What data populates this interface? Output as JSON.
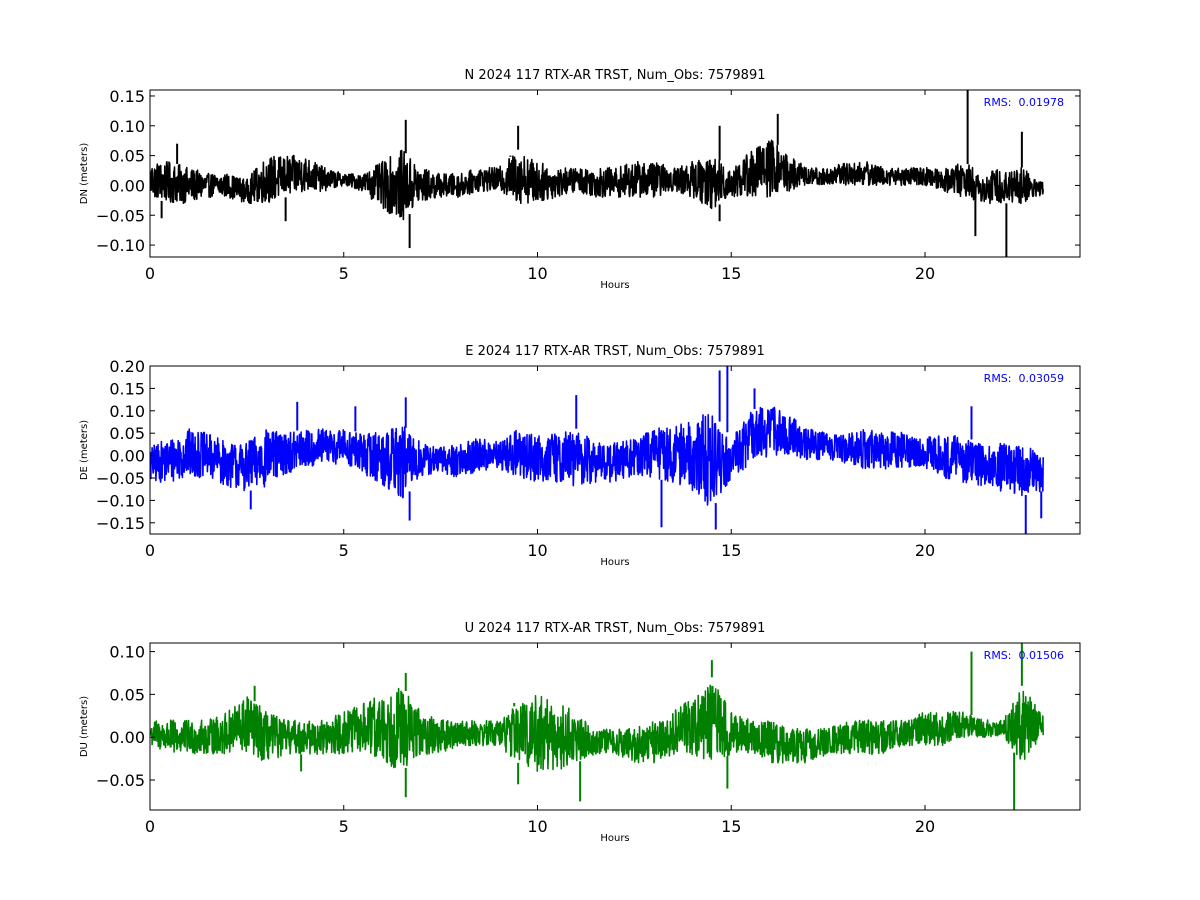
{
  "chart_data": [
    {
      "type": "line",
      "title": "N 2024 117 RTX-AR  TRST, Num_Obs: 7579891",
      "xlabel": "Hours",
      "ylabel": "DN (meters)",
      "xlim": [
        0,
        24
      ],
      "ylim": [
        -0.12,
        0.16
      ],
      "xticks": [
        0,
        5,
        10,
        15,
        20
      ],
      "yticks": [
        -0.1,
        -0.05,
        0.0,
        0.05,
        0.1,
        0.15
      ],
      "ytick_labels": [
        "−0.10",
        "−0.05",
        "0.00",
        "0.05",
        "0.10",
        "0.15"
      ],
      "color": "#000000",
      "annotation": {
        "label": "RMS:",
        "value": "0.01978",
        "color": "#0000ff"
      },
      "envelope": {
        "x": [
          0.0,
          0.5,
          1.0,
          1.5,
          2.0,
          2.5,
          3.0,
          3.5,
          4.0,
          4.5,
          5.0,
          5.5,
          6.0,
          6.5,
          7.0,
          7.5,
          8.0,
          8.5,
          9.0,
          9.5,
          10.0,
          10.5,
          11.0,
          11.5,
          12.0,
          12.5,
          13.0,
          13.5,
          14.0,
          14.5,
          15.0,
          15.5,
          16.0,
          16.5,
          17.0,
          17.5,
          18.0,
          18.5,
          19.0,
          19.5,
          20.0,
          20.5,
          21.0,
          21.5,
          22.0,
          22.5,
          23.0
        ],
        "upper": [
          0.04,
          0.04,
          0.03,
          0.02,
          0.02,
          0.01,
          0.05,
          0.05,
          0.05,
          0.03,
          0.02,
          0.02,
          0.04,
          0.06,
          0.03,
          0.02,
          0.02,
          0.03,
          0.03,
          0.06,
          0.04,
          0.03,
          0.03,
          0.03,
          0.03,
          0.04,
          0.04,
          0.03,
          0.04,
          0.05,
          0.03,
          0.06,
          0.08,
          0.05,
          0.03,
          0.03,
          0.04,
          0.04,
          0.03,
          0.03,
          0.03,
          0.03,
          0.04,
          0.02,
          0.03,
          0.03,
          0.01
        ],
        "lower": [
          -0.02,
          -0.03,
          -0.03,
          -0.02,
          -0.02,
          -0.03,
          -0.03,
          -0.02,
          -0.01,
          -0.01,
          0.0,
          -0.01,
          -0.04,
          -0.06,
          -0.03,
          -0.02,
          -0.02,
          -0.01,
          -0.01,
          -0.03,
          -0.03,
          -0.02,
          -0.01,
          -0.02,
          -0.02,
          -0.02,
          -0.02,
          -0.01,
          -0.02,
          -0.04,
          -0.02,
          -0.02,
          -0.02,
          -0.01,
          0.0,
          0.0,
          0.0,
          0.0,
          0.0,
          0.0,
          0.0,
          -0.01,
          -0.02,
          -0.03,
          -0.03,
          -0.03,
          -0.02
        ]
      },
      "spikes": [
        {
          "x": 0.3,
          "y": -0.055
        },
        {
          "x": 0.7,
          "y": 0.07
        },
        {
          "x": 3.5,
          "y": -0.06
        },
        {
          "x": 6.6,
          "y": 0.11
        },
        {
          "x": 6.7,
          "y": -0.105
        },
        {
          "x": 9.3,
          "y": 0.05
        },
        {
          "x": 9.5,
          "y": 0.1
        },
        {
          "x": 14.7,
          "y": 0.1
        },
        {
          "x": 14.7,
          "y": -0.06
        },
        {
          "x": 16.2,
          "y": 0.12
        },
        {
          "x": 21.1,
          "y": 0.16
        },
        {
          "x": 21.3,
          "y": -0.085
        },
        {
          "x": 22.1,
          "y": -0.12
        },
        {
          "x": 22.5,
          "y": 0.09
        }
      ]
    },
    {
      "type": "line",
      "title": "E 2024 117 RTX-AR  TRST, Num_Obs: 7579891",
      "xlabel": "Hours",
      "ylabel": "DE (meters)",
      "xlim": [
        0,
        24
      ],
      "ylim": [
        -0.175,
        0.2
      ],
      "xticks": [
        0,
        5,
        10,
        15,
        20
      ],
      "yticks": [
        -0.15,
        -0.1,
        -0.05,
        0.0,
        0.05,
        0.1,
        0.15,
        0.2
      ],
      "ytick_labels": [
        "−0.15",
        "−0.10",
        "−0.05",
        "0.00",
        "0.05",
        "0.10",
        "0.15",
        "0.20"
      ],
      "color": "#0000ff",
      "annotation": {
        "label": "RMS:",
        "value": "0.03059",
        "color": "#0000ff"
      },
      "envelope": {
        "x": [
          0.0,
          0.5,
          1.0,
          1.5,
          2.0,
          2.5,
          3.0,
          3.5,
          4.0,
          4.5,
          5.0,
          5.5,
          6.0,
          6.5,
          7.0,
          7.5,
          8.0,
          8.5,
          9.0,
          9.5,
          10.0,
          10.5,
          11.0,
          11.5,
          12.0,
          12.5,
          13.0,
          13.5,
          14.0,
          14.5,
          15.0,
          15.5,
          16.0,
          16.5,
          17.0,
          17.5,
          18.0,
          18.5,
          19.0,
          19.5,
          20.0,
          20.5,
          21.0,
          21.5,
          22.0,
          22.5,
          23.0
        ],
        "upper": [
          0.02,
          0.04,
          0.06,
          0.05,
          0.03,
          0.03,
          0.06,
          0.05,
          0.06,
          0.06,
          0.06,
          0.05,
          0.06,
          0.07,
          0.03,
          0.02,
          0.03,
          0.04,
          0.03,
          0.06,
          0.05,
          0.05,
          0.06,
          0.03,
          0.03,
          0.04,
          0.06,
          0.07,
          0.08,
          0.1,
          0.04,
          0.1,
          0.12,
          0.09,
          0.06,
          0.05,
          0.05,
          0.06,
          0.06,
          0.05,
          0.04,
          0.05,
          0.04,
          0.03,
          0.03,
          0.02,
          0.02
        ],
        "lower": [
          -0.06,
          -0.06,
          -0.05,
          -0.05,
          -0.07,
          -0.08,
          -0.07,
          -0.04,
          -0.03,
          -0.02,
          -0.02,
          -0.04,
          -0.07,
          -0.1,
          -0.05,
          -0.04,
          -0.05,
          -0.04,
          -0.03,
          -0.05,
          -0.06,
          -0.06,
          -0.07,
          -0.06,
          -0.06,
          -0.05,
          -0.05,
          -0.06,
          -0.08,
          -0.12,
          -0.05,
          -0.02,
          0.0,
          0.0,
          -0.01,
          -0.01,
          -0.02,
          -0.03,
          -0.03,
          -0.03,
          -0.03,
          -0.05,
          -0.06,
          -0.07,
          -0.08,
          -0.09,
          -0.08
        ]
      },
      "spikes": [
        {
          "x": 2.6,
          "y": -0.12
        },
        {
          "x": 3.8,
          "y": 0.12
        },
        {
          "x": 5.3,
          "y": 0.11
        },
        {
          "x": 6.6,
          "y": 0.13
        },
        {
          "x": 6.7,
          "y": -0.145
        },
        {
          "x": 11.0,
          "y": 0.135
        },
        {
          "x": 13.2,
          "y": -0.16
        },
        {
          "x": 14.6,
          "y": -0.165
        },
        {
          "x": 14.7,
          "y": 0.19
        },
        {
          "x": 14.9,
          "y": 0.2
        },
        {
          "x": 15.6,
          "y": 0.15
        },
        {
          "x": 21.2,
          "y": 0.11
        },
        {
          "x": 22.6,
          "y": -0.175
        },
        {
          "x": 23.0,
          "y": -0.14
        }
      ]
    },
    {
      "type": "line",
      "title": "U 2024 117 RTX-AR  TRST, Num_Obs: 7579891",
      "xlabel": "Hours",
      "ylabel": "DU (meters)",
      "xlim": [
        0,
        24
      ],
      "ylim": [
        -0.085,
        0.11
      ],
      "xticks": [
        0,
        5,
        10,
        15,
        20
      ],
      "yticks": [
        -0.05,
        0.0,
        0.05,
        0.1
      ],
      "ytick_labels": [
        "−0.05",
        "0.00",
        "0.05",
        "0.10"
      ],
      "color": "#008000",
      "annotation": {
        "label": "RMS:",
        "value": "0.01506",
        "color": "#0000ff"
      },
      "envelope": {
        "x": [
          0.0,
          0.5,
          1.0,
          1.5,
          2.0,
          2.5,
          3.0,
          3.5,
          4.0,
          4.5,
          5.0,
          5.5,
          6.0,
          6.5,
          7.0,
          7.5,
          8.0,
          8.5,
          9.0,
          9.5,
          10.0,
          10.5,
          11.0,
          11.5,
          12.0,
          12.5,
          13.0,
          13.5,
          14.0,
          14.5,
          15.0,
          15.5,
          16.0,
          16.5,
          17.0,
          17.5,
          18.0,
          18.5,
          19.0,
          19.5,
          20.0,
          20.5,
          21.0,
          21.5,
          22.0,
          22.5,
          23.0
        ],
        "upper": [
          0.02,
          0.02,
          0.02,
          0.02,
          0.03,
          0.05,
          0.03,
          0.02,
          0.02,
          0.02,
          0.03,
          0.04,
          0.05,
          0.06,
          0.03,
          0.02,
          0.02,
          0.02,
          0.02,
          0.04,
          0.05,
          0.04,
          0.03,
          0.01,
          0.01,
          0.01,
          0.02,
          0.03,
          0.05,
          0.07,
          0.03,
          0.02,
          0.02,
          0.01,
          0.01,
          0.01,
          0.02,
          0.02,
          0.02,
          0.02,
          0.03,
          0.03,
          0.03,
          0.02,
          0.02,
          0.06,
          0.03
        ],
        "lower": [
          -0.01,
          -0.02,
          -0.02,
          -0.02,
          -0.02,
          -0.02,
          -0.03,
          -0.02,
          -0.02,
          -0.02,
          -0.02,
          -0.02,
          -0.03,
          -0.04,
          -0.02,
          -0.02,
          -0.01,
          -0.01,
          -0.01,
          -0.03,
          -0.04,
          -0.04,
          -0.03,
          -0.02,
          -0.02,
          -0.03,
          -0.03,
          -0.02,
          -0.02,
          -0.03,
          -0.02,
          -0.02,
          -0.03,
          -0.03,
          -0.03,
          -0.02,
          -0.02,
          -0.02,
          -0.02,
          -0.01,
          -0.01,
          -0.01,
          0.0,
          0.0,
          0.0,
          -0.03,
          0.0
        ]
      },
      "spikes": [
        {
          "x": 2.7,
          "y": 0.06
        },
        {
          "x": 3.9,
          "y": -0.04
        },
        {
          "x": 6.6,
          "y": -0.07
        },
        {
          "x": 6.6,
          "y": 0.075
        },
        {
          "x": 9.4,
          "y": 0.04
        },
        {
          "x": 9.5,
          "y": -0.055
        },
        {
          "x": 11.1,
          "y": -0.075
        },
        {
          "x": 14.5,
          "y": 0.09
        },
        {
          "x": 14.9,
          "y": -0.06
        },
        {
          "x": 21.2,
          "y": 0.1
        },
        {
          "x": 22.3,
          "y": -0.085
        },
        {
          "x": 22.5,
          "y": 0.11
        }
      ]
    }
  ]
}
